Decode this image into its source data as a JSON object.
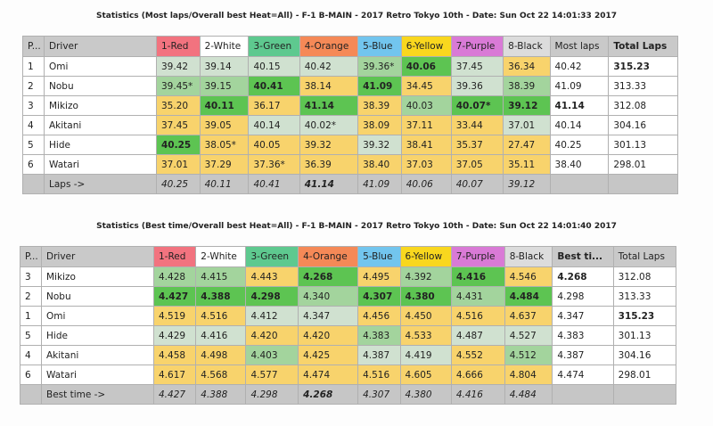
{
  "header_colors": [
    "#f2737f",
    "#ffffff",
    "#5ec98f",
    "#f58957",
    "#72c5ee",
    "#f9d71e",
    "#d97ad6",
    "#dcdcdc"
  ],
  "tables": [
    {
      "title": "Statistics (Most laps/Overall best Heat=All) - F-1 B-MAIN - 2017 Retro Tokyo 10th - Date: Sun Oct 22 14:01:33 2017",
      "headers": [
        "P...",
        "Driver",
        "1-Red",
        "2-White",
        "3-Green",
        "4-Orange",
        "5-Blue",
        "6-Yellow",
        "7-Purple",
        "8-Black",
        "Most laps",
        "Total Laps"
      ],
      "header_bold": [
        false,
        false,
        false,
        false,
        false,
        false,
        false,
        false,
        false,
        false,
        false,
        true
      ],
      "rows": [
        {
          "pos": "1",
          "driver": "Omi",
          "values": [
            "39.42",
            "39.14",
            "40.15",
            "40.42",
            "39.36*",
            "40.06",
            "37.45",
            "36.34"
          ],
          "shade": "llllmgly",
          "extra": [
            "40.42",
            "315.23"
          ],
          "extra_bold": [
            false,
            true
          ]
        },
        {
          "pos": "2",
          "driver": "Nobu",
          "values": [
            "39.45*",
            "39.15",
            "40.41",
            "38.14",
            "41.09",
            "34.45",
            "39.36",
            "38.39"
          ],
          "shade": "mmgygylm",
          "extra": [
            "41.09",
            "313.33"
          ],
          "extra_bold": [
            false,
            false
          ]
        },
        {
          "pos": "3",
          "driver": "Mikizo",
          "values": [
            "35.20",
            "40.11",
            "36.17",
            "41.14",
            "38.39",
            "40.03",
            "40.07*",
            "39.12"
          ],
          "shade": "ygygymgg",
          "extra": [
            "41.14",
            "312.08"
          ],
          "extra_bold": [
            true,
            false
          ]
        },
        {
          "pos": "4",
          "driver": "Akitani",
          "values": [
            "37.45",
            "39.05",
            "40.14",
            "40.02*",
            "38.09",
            "37.11",
            "33.44",
            "37.01"
          ],
          "shade": "yyllyyyl",
          "extra": [
            "40.14",
            "304.16"
          ],
          "extra_bold": [
            false,
            false
          ]
        },
        {
          "pos": "5",
          "driver": "Hide",
          "values": [
            "40.25",
            "38.05*",
            "40.05",
            "39.32",
            "39.32",
            "38.41",
            "35.37",
            "27.47"
          ],
          "shade": "gyyylyyy",
          "extra": [
            "40.25",
            "301.13"
          ],
          "extra_bold": [
            false,
            false
          ]
        },
        {
          "pos": "6",
          "driver": "Watari",
          "values": [
            "37.01",
            "37.29",
            "37.36*",
            "36.39",
            "38.40",
            "37.03",
            "37.05",
            "35.11"
          ],
          "shade": "yyyyyyyy",
          "extra": [
            "38.40",
            "298.01"
          ],
          "extra_bold": [
            false,
            false
          ]
        }
      ],
      "footer": {
        "label": "Laps ->",
        "values": [
          "40.25",
          "40.11",
          "40.41",
          "41.14",
          "41.09",
          "40.06",
          "40.07",
          "39.12"
        ],
        "bold_index": 3
      }
    },
    {
      "title": "Statistics (Best time/Overall best Heat=All) - F-1 B-MAIN - 2017 Retro Tokyo 10th - Date: Sun Oct 22 14:01:40 2017",
      "headers": [
        "P...",
        "Driver",
        "1-Red",
        "2-White",
        "3-Green",
        "4-Orange",
        "5-Blue",
        "6-Yellow",
        "7-Purple",
        "8-Black",
        "Best ti...",
        "Total Laps"
      ],
      "header_bold": [
        false,
        false,
        false,
        false,
        false,
        false,
        false,
        false,
        false,
        false,
        true,
        false
      ],
      "rows": [
        {
          "pos": "3",
          "driver": "Mikizo",
          "values": [
            "4.428",
            "4.415",
            "4.443",
            "4.268",
            "4.495",
            "4.392",
            "4.416",
            "4.546"
          ],
          "shade": "mmygymgy",
          "extra": [
            "4.268",
            "312.08"
          ],
          "extra_bold": [
            true,
            false
          ]
        },
        {
          "pos": "2",
          "driver": "Nobu",
          "values": [
            "4.427",
            "4.388",
            "4.298",
            "4.340",
            "4.307",
            "4.380",
            "4.431",
            "4.484"
          ],
          "shade": "gggmggmg",
          "extra": [
            "4.298",
            "313.33"
          ],
          "extra_bold": [
            false,
            false
          ]
        },
        {
          "pos": "1",
          "driver": "Omi",
          "values": [
            "4.519",
            "4.516",
            "4.412",
            "4.347",
            "4.456",
            "4.450",
            "4.516",
            "4.637"
          ],
          "shade": "yyllyyyy",
          "extra": [
            "4.347",
            "315.23"
          ],
          "extra_bold": [
            false,
            true
          ]
        },
        {
          "pos": "5",
          "driver": "Hide",
          "values": [
            "4.429",
            "4.416",
            "4.420",
            "4.420",
            "4.383",
            "4.533",
            "4.487",
            "4.527"
          ],
          "shade": "llyymyll",
          "extra": [
            "4.383",
            "301.13"
          ],
          "extra_bold": [
            false,
            false
          ]
        },
        {
          "pos": "4",
          "driver": "Akitani",
          "values": [
            "4.458",
            "4.498",
            "4.403",
            "4.425",
            "4.387",
            "4.419",
            "4.552",
            "4.512"
          ],
          "shade": "yymyllym",
          "extra": [
            "4.387",
            "304.16"
          ],
          "extra_bold": [
            false,
            false
          ]
        },
        {
          "pos": "6",
          "driver": "Watari",
          "values": [
            "4.617",
            "4.568",
            "4.577",
            "4.474",
            "4.516",
            "4.605",
            "4.666",
            "4.804"
          ],
          "shade": "yyyyyyyy",
          "extra": [
            "4.474",
            "298.01"
          ],
          "extra_bold": [
            false,
            false
          ]
        }
      ],
      "footer": {
        "label": "Best time ->",
        "values": [
          "4.427",
          "4.388",
          "4.298",
          "4.268",
          "4.307",
          "4.380",
          "4.416",
          "4.484"
        ],
        "bold_index": 3
      }
    }
  ]
}
